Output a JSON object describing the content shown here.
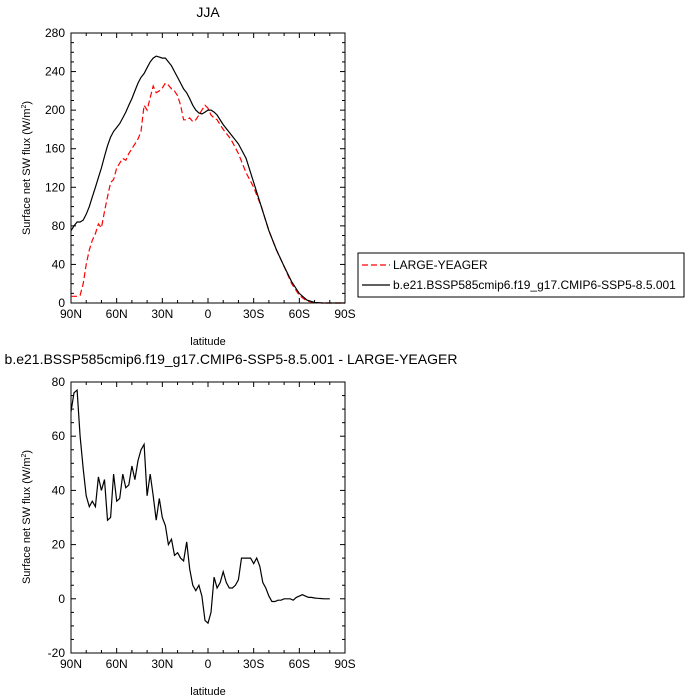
{
  "chart_data": [
    {
      "type": "line",
      "title": "JJA",
      "xlabel": "latitude",
      "ylabel": "Surface net SW flux (W/m",
      "ylabel_sup": "2",
      "ylabel_close": ")",
      "xlim": [
        90,
        -90
      ],
      "ylim": [
        0,
        280
      ],
      "x_ticks": [
        90,
        60,
        30,
        0,
        -30,
        -60,
        -90
      ],
      "x_tick_labels": [
        "90N",
        "60N",
        "30N",
        "0",
        "30S",
        "60S",
        "90S"
      ],
      "y_ticks": [
        0,
        40,
        80,
        120,
        160,
        200,
        240,
        280
      ],
      "y_tick_labels": [
        "0",
        "40",
        "80",
        "120",
        "160",
        "200",
        "240",
        "280"
      ],
      "grid": false,
      "legend_placement": "right",
      "series": [
        {
          "name": "LARGE-YEAGER",
          "color": "#ff0000",
          "dash": "dashed",
          "x": [
            90,
            86,
            84,
            82,
            80,
            78,
            76,
            74,
            72,
            70,
            68,
            66,
            64,
            62,
            60,
            58,
            56,
            54,
            52,
            50,
            48,
            46,
            44,
            42,
            40,
            38,
            36,
            34,
            32,
            30,
            28,
            26,
            24,
            22,
            20,
            18,
            16,
            14,
            12,
            10,
            8,
            6,
            4,
            2,
            0,
            -2,
            -4,
            -6,
            -10,
            -15,
            -20,
            -25,
            -30,
            -35,
            -40,
            -45,
            -50,
            -55,
            -60,
            -65,
            -70,
            -75,
            -80,
            -85,
            -90
          ],
          "y": [
            7,
            7,
            8,
            20,
            40,
            55,
            65,
            72,
            82,
            78,
            95,
            110,
            125,
            128,
            140,
            145,
            150,
            148,
            155,
            160,
            165,
            170,
            178,
            205,
            200,
            213,
            225,
            218,
            220,
            223,
            228,
            226,
            222,
            220,
            215,
            205,
            190,
            190,
            192,
            188,
            190,
            195,
            200,
            205,
            202,
            195,
            192,
            190,
            180,
            170,
            155,
            135,
            120,
            100,
            75,
            55,
            38,
            20,
            8,
            2,
            0.5,
            0,
            0,
            0,
            0
          ]
        },
        {
          "name": "b.e21.BSSP585cmip6.f19_g17.CMIP6-SSP5-8.5.001",
          "color": "#000000",
          "dash": "solid",
          "x": [
            90,
            88,
            86,
            84,
            82,
            80,
            78,
            76,
            74,
            72,
            70,
            68,
            66,
            64,
            62,
            60,
            58,
            56,
            54,
            52,
            50,
            48,
            46,
            44,
            42,
            40,
            38,
            36,
            34,
            32,
            30,
            28,
            26,
            24,
            22,
            20,
            18,
            16,
            14,
            12,
            10,
            8,
            6,
            4,
            2,
            0,
            -2,
            -4,
            -6,
            -10,
            -15,
            -20,
            -25,
            -30,
            -35,
            -40,
            -45,
            -50,
            -55,
            -60,
            -65,
            -70,
            -75,
            -80,
            -85,
            -90
          ],
          "y": [
            75,
            80,
            84,
            84,
            86,
            92,
            100,
            110,
            120,
            130,
            140,
            152,
            163,
            172,
            178,
            182,
            186,
            192,
            198,
            205,
            212,
            220,
            228,
            234,
            238,
            244,
            250,
            254,
            256,
            255,
            254,
            254,
            250,
            246,
            240,
            234,
            228,
            222,
            218,
            212,
            205,
            200,
            197,
            196,
            198,
            200,
            200,
            198,
            195,
            185,
            175,
            165,
            150,
            125,
            100,
            75,
            55,
            38,
            22,
            10,
            3,
            0.5,
            0,
            0,
            0,
            0
          ]
        }
      ]
    },
    {
      "type": "line",
      "title": "b.e21.BSSP585cmip6.f19_g17.CMIP6-SSP5-8.5.001 - LARGE-YEAGER",
      "xlabel": "latitude",
      "ylabel": "Surface net SW flux (W/m",
      "ylabel_sup": "2",
      "ylabel_close": ")",
      "xlim": [
        90,
        -90
      ],
      "ylim": [
        -20,
        80
      ],
      "x_ticks": [
        90,
        60,
        30,
        0,
        -30,
        -60,
        -90
      ],
      "x_tick_labels": [
        "90N",
        "60N",
        "30N",
        "0",
        "30S",
        "60S",
        "90S"
      ],
      "y_ticks": [
        -20,
        0,
        20,
        40,
        60,
        80
      ],
      "y_tick_labels": [
        "-20",
        "0",
        "20",
        "40",
        "60",
        "80"
      ],
      "grid": false,
      "series": [
        {
          "color": "#000000",
          "dash": "solid",
          "x": [
            90,
            88,
            86,
            84,
            82,
            80,
            78,
            76,
            74,
            72,
            70,
            68,
            66,
            64,
            62,
            60,
            58,
            56,
            54,
            52,
            50,
            48,
            46,
            44,
            42,
            40,
            38,
            36,
            34,
            32,
            30,
            28,
            26,
            24,
            22,
            20,
            18,
            16,
            14,
            12,
            10,
            8,
            6,
            4,
            2,
            0,
            -2,
            -4,
            -6,
            -8,
            -10,
            -12,
            -14,
            -16,
            -18,
            -20,
            -22,
            -24,
            -26,
            -28,
            -30,
            -32,
            -34,
            -36,
            -38,
            -40,
            -42,
            -44,
            -46,
            -48,
            -50,
            -52,
            -54,
            -56,
            -58,
            -60,
            -62,
            -64,
            -66,
            -68,
            -70,
            -72,
            -74,
            -76,
            -78,
            -80
          ],
          "y": [
            69,
            76,
            77,
            60,
            48,
            38,
            34,
            36,
            34,
            45,
            40,
            44,
            29,
            30,
            46,
            36,
            37,
            46,
            41,
            42,
            49,
            44,
            51,
            55,
            57,
            38,
            46,
            38,
            29,
            37,
            30,
            27,
            20,
            22,
            16,
            17,
            15,
            14,
            21,
            11,
            5,
            3,
            5,
            1,
            -8,
            -9,
            -5,
            8,
            4,
            6,
            10,
            6,
            4,
            4,
            5,
            7,
            15,
            15,
            15,
            15,
            13,
            15,
            12,
            6,
            4,
            1,
            -1,
            -1,
            -0.5,
            -0.5,
            0,
            0,
            0,
            -0.5,
            0.5,
            1,
            1.5,
            1,
            0.5,
            0.5,
            0.3,
            0.2,
            0.1,
            0,
            0,
            0
          ]
        }
      ]
    }
  ]
}
